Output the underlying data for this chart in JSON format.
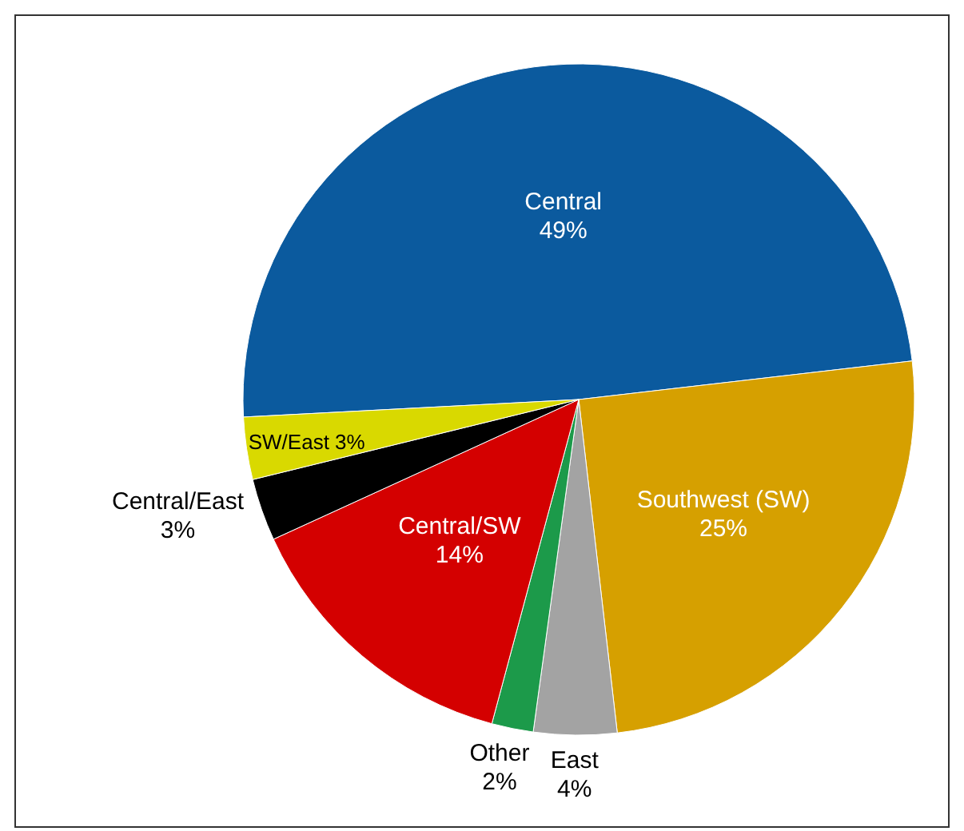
{
  "chart_data": {
    "type": "pie",
    "categories": [
      "Central",
      "Southwest (SW)",
      "East",
      "Other",
      "Central/SW",
      "Central/East",
      "SW/East"
    ],
    "values": [
      49,
      25,
      4,
      2,
      14,
      3,
      3
    ],
    "value_labels": [
      "49%",
      "25%",
      "4%",
      "2%",
      "14%",
      "3%",
      "3%"
    ],
    "colors": [
      "#0b5a9e",
      "#d6a000",
      "#a3a3a3",
      "#1c9a4a",
      "#d40000",
      "#000000",
      "#d9d900"
    ]
  }
}
